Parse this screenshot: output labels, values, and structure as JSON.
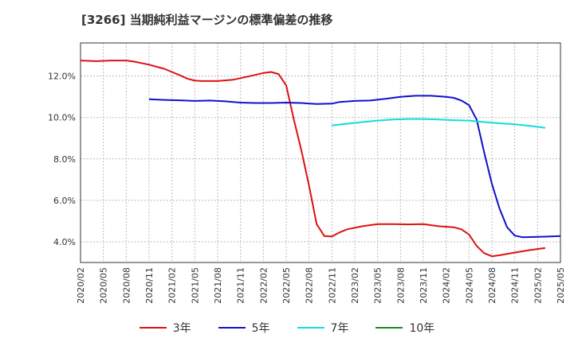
{
  "chart_data": {
    "type": "line",
    "title": "[3266]  当期純利益マージンの標準偏差の推移",
    "xlabel": "",
    "ylabel": "",
    "x_ticks": [
      "2020/02",
      "2020/05",
      "2020/08",
      "2020/11",
      "2021/02",
      "2021/05",
      "2021/08",
      "2021/11",
      "2022/02",
      "2022/05",
      "2022/08",
      "2022/11",
      "2023/02",
      "2023/05",
      "2023/08",
      "2023/11",
      "2024/02",
      "2024/05",
      "2024/08",
      "2024/11",
      "2025/02",
      "2025/05"
    ],
    "ylim": [
      3.0,
      13.6
    ],
    "y_ticks": [
      {
        "value": 4.0,
        "label": "4.0%"
      },
      {
        "value": 6.0,
        "label": "6.0%"
      },
      {
        "value": 8.0,
        "label": "8.0%"
      },
      {
        "value": 10.0,
        "label": "10.0%"
      },
      {
        "value": 12.0,
        "label": "12.0%"
      }
    ],
    "grid": true,
    "legend_position": "bottom",
    "series": [
      {
        "name": "3年",
        "color": "#dd1111",
        "points": [
          [
            "2020/02",
            12.75
          ],
          [
            "2020/04",
            12.72
          ],
          [
            "2020/06",
            12.75
          ],
          [
            "2020/08",
            12.75
          ],
          [
            "2020/09",
            12.7
          ],
          [
            "2020/11",
            12.55
          ],
          [
            "2021/01",
            12.35
          ],
          [
            "2021/02",
            12.2
          ],
          [
            "2021/03",
            12.05
          ],
          [
            "2021/04",
            11.88
          ],
          [
            "2021/05",
            11.78
          ],
          [
            "2021/06",
            11.76
          ],
          [
            "2021/08",
            11.76
          ],
          [
            "2021/10",
            11.82
          ],
          [
            "2021/12",
            11.98
          ],
          [
            "2022/02",
            12.15
          ],
          [
            "2022/03",
            12.2
          ],
          [
            "2022/04",
            12.1
          ],
          [
            "2022/05",
            11.55
          ],
          [
            "2022/06",
            9.9
          ],
          [
            "2022/07",
            8.4
          ],
          [
            "2022/08",
            6.7
          ],
          [
            "2022/09",
            4.85
          ],
          [
            "2022/10",
            4.28
          ],
          [
            "2022/11",
            4.26
          ],
          [
            "2022/12",
            4.45
          ],
          [
            "2023/01",
            4.6
          ],
          [
            "2023/03",
            4.75
          ],
          [
            "2023/05",
            4.85
          ],
          [
            "2023/07",
            4.85
          ],
          [
            "2023/09",
            4.84
          ],
          [
            "2023/11",
            4.85
          ],
          [
            "2024/01",
            4.75
          ],
          [
            "2024/03",
            4.7
          ],
          [
            "2024/04",
            4.6
          ],
          [
            "2024/05",
            4.35
          ],
          [
            "2024/06",
            3.8
          ],
          [
            "2024/07",
            3.45
          ],
          [
            "2024/08",
            3.3
          ],
          [
            "2024/09",
            3.35
          ],
          [
            "2024/11",
            3.48
          ],
          [
            "2025/01",
            3.6
          ],
          [
            "2025/03",
            3.7
          ]
        ]
      },
      {
        "name": "5年",
        "color": "#1111cc",
        "points": [
          [
            "2020/11",
            10.88
          ],
          [
            "2021/01",
            10.85
          ],
          [
            "2021/03",
            10.83
          ],
          [
            "2021/05",
            10.8
          ],
          [
            "2021/07",
            10.82
          ],
          [
            "2021/09",
            10.78
          ],
          [
            "2021/11",
            10.72
          ],
          [
            "2022/01",
            10.7
          ],
          [
            "2022/03",
            10.7
          ],
          [
            "2022/05",
            10.72
          ],
          [
            "2022/07",
            10.7
          ],
          [
            "2022/09",
            10.65
          ],
          [
            "2022/11",
            10.67
          ],
          [
            "2022/12",
            10.75
          ],
          [
            "2023/02",
            10.8
          ],
          [
            "2023/04",
            10.82
          ],
          [
            "2023/06",
            10.9
          ],
          [
            "2023/08",
            11.0
          ],
          [
            "2023/10",
            11.05
          ],
          [
            "2023/12",
            11.05
          ],
          [
            "2024/02",
            11.0
          ],
          [
            "2024/03",
            10.95
          ],
          [
            "2024/04",
            10.82
          ],
          [
            "2024/05",
            10.6
          ],
          [
            "2024/06",
            9.9
          ],
          [
            "2024/07",
            8.3
          ],
          [
            "2024/08",
            6.8
          ],
          [
            "2024/09",
            5.6
          ],
          [
            "2024/10",
            4.7
          ],
          [
            "2024/11",
            4.3
          ],
          [
            "2024/12",
            4.22
          ],
          [
            "2025/01",
            4.23
          ],
          [
            "2025/03",
            4.25
          ],
          [
            "2025/05",
            4.28
          ]
        ]
      },
      {
        "name": "7年",
        "color": "#11dddd",
        "points": [
          [
            "2022/11",
            9.62
          ],
          [
            "2023/01",
            9.7
          ],
          [
            "2023/03",
            9.78
          ],
          [
            "2023/05",
            9.85
          ],
          [
            "2023/07",
            9.9
          ],
          [
            "2023/09",
            9.93
          ],
          [
            "2023/11",
            9.93
          ],
          [
            "2024/01",
            9.9
          ],
          [
            "2024/03",
            9.87
          ],
          [
            "2024/05",
            9.85
          ],
          [
            "2024/07",
            9.78
          ],
          [
            "2024/09",
            9.72
          ],
          [
            "2024/11",
            9.67
          ],
          [
            "2025/01",
            9.6
          ],
          [
            "2025/03",
            9.5
          ]
        ]
      },
      {
        "name": "10年",
        "color": "#228822",
        "points": []
      }
    ]
  }
}
